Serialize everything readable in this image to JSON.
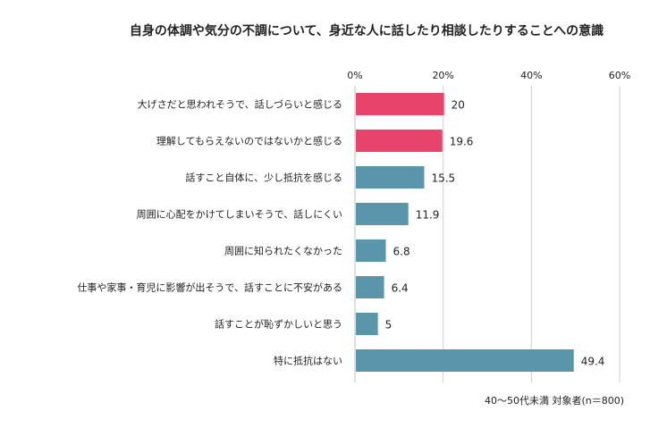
{
  "chart_data": {
    "type": "bar",
    "orientation": "horizontal",
    "title": "自身の体調や気分の不調について、身近な人に話したり相談したりすることへの意識",
    "note": "40〜50代未満 対象者(n＝800)",
    "categories": [
      "大げさだと思われそうで、話しづらいと感じる",
      "理解してもらえないのではないかと感じる",
      "話すこと自体に、少し抵抗を感じる",
      "周囲に心配をかけてしまいそうで、話しにくい",
      "周囲に知られたくなかった",
      "仕事や家事・育児に影響が出そうで、話すことに不安がある",
      "話すことが恥ずかしいと思う",
      "特に抵抗はない"
    ],
    "values": [
      20,
      19.6,
      15.5,
      11.9,
      6.8,
      6.4,
      5,
      49.4
    ],
    "value_labels": [
      "20",
      "19.6",
      "15.5",
      "11.9",
      "6.8",
      "6.4",
      "5",
      "49.4"
    ],
    "bar_colors": [
      "#e8436a",
      "#e8436a",
      "#5b95ab",
      "#5b95ab",
      "#5b95ab",
      "#5b95ab",
      "#5b95ab",
      "#5b95ab"
    ],
    "xlim": [
      0,
      60
    ],
    "xticks": [
      "0%",
      "20%",
      "40%",
      "60%"
    ],
    "grid": true,
    "gridline_color": "#d0d0d0"
  }
}
